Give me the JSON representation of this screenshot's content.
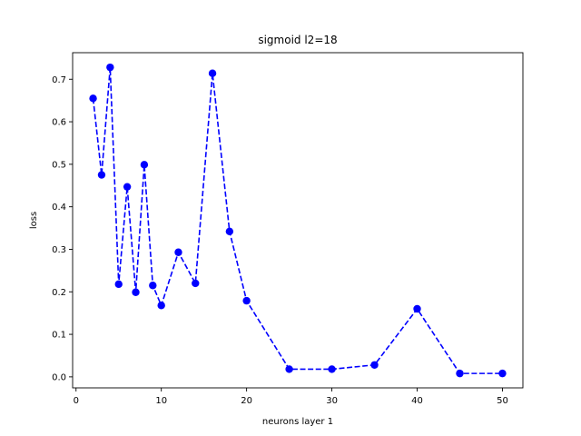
{
  "chart_data": {
    "type": "line",
    "title": "sigmoid l2=18",
    "xlabel": "neurons layer 1",
    "ylabel": "loss",
    "xlim": [
      -0.4,
      52.4
    ],
    "ylim": [
      -0.0259,
      0.7625
    ],
    "xticks": [
      0,
      10,
      20,
      30,
      40,
      50
    ],
    "yticks": [
      0.0,
      0.1,
      0.2,
      0.3,
      0.4,
      0.5,
      0.6,
      0.7
    ],
    "ytick_labels": [
      "0.0",
      "0.1",
      "0.2",
      "0.3",
      "0.4",
      "0.5",
      "0.6",
      "0.7"
    ],
    "grid": false,
    "legend": "none",
    "series": [
      {
        "color": "#0000ff",
        "line_style": "dashed",
        "marker": "circle",
        "x": [
          2,
          3,
          4,
          5,
          6,
          7,
          8,
          9,
          10,
          12,
          14,
          16,
          18,
          20,
          25,
          30,
          35,
          40,
          45,
          50
        ],
        "y": [
          0.655,
          0.475,
          0.728,
          0.218,
          0.447,
          0.199,
          0.499,
          0.215,
          0.168,
          0.293,
          0.22,
          0.714,
          0.342,
          0.179,
          0.018,
          0.018,
          0.028,
          0.16,
          0.008,
          0.008
        ]
      }
    ]
  }
}
